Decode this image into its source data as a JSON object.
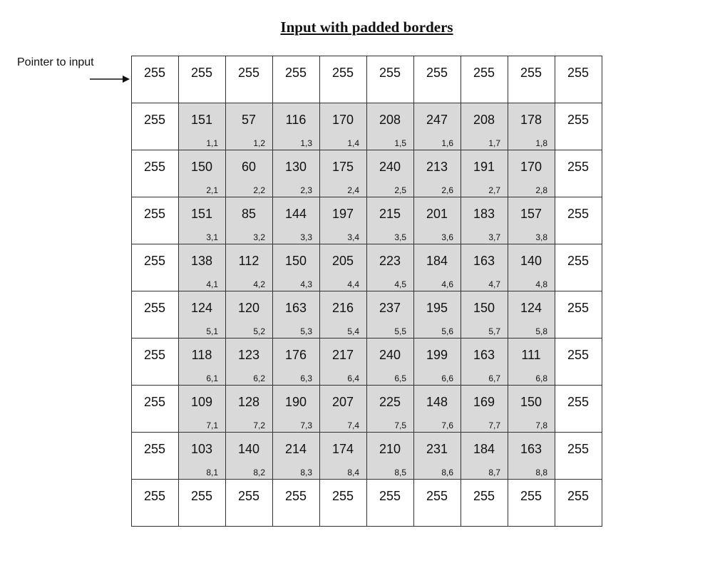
{
  "title": "Input with padded borders",
  "pointer_label": "Pointer to input",
  "grid": {
    "padding_value": "255",
    "colors": {
      "inner_fill": "#d9d9d9",
      "outer_fill": "#ffffff",
      "grid_line": "#333333"
    },
    "rows": [
      [
        "255",
        "255",
        "255",
        "255",
        "255",
        "255",
        "255",
        "255",
        "255",
        "255"
      ],
      [
        "255",
        "151",
        "57",
        "116",
        "170",
        "208",
        "247",
        "208",
        "178",
        "255"
      ],
      [
        "255",
        "150",
        "60",
        "130",
        "175",
        "240",
        "213",
        "191",
        "170",
        "255"
      ],
      [
        "255",
        "151",
        "85",
        "144",
        "197",
        "215",
        "201",
        "183",
        "157",
        "255"
      ],
      [
        "255",
        "138",
        "112",
        "150",
        "205",
        "223",
        "184",
        "163",
        "140",
        "255"
      ],
      [
        "255",
        "124",
        "120",
        "163",
        "216",
        "237",
        "195",
        "150",
        "124",
        "255"
      ],
      [
        "255",
        "118",
        "123",
        "176",
        "217",
        "240",
        "199",
        "163",
        "111",
        "255"
      ],
      [
        "255",
        "109",
        "128",
        "190",
        "207",
        "225",
        "148",
        "169",
        "150",
        "255"
      ],
      [
        "255",
        "103",
        "140",
        "214",
        "174",
        "210",
        "231",
        "184",
        "163",
        "255"
      ],
      [
        "255",
        "255",
        "255",
        "255",
        "255",
        "255",
        "255",
        "255",
        "255",
        "255"
      ]
    ],
    "indices": [
      [
        "1,1",
        "1,2",
        "1,3",
        "1,4",
        "1,5",
        "1,6",
        "1,7",
        "1,8"
      ],
      [
        "2,1",
        "2,2",
        "2,3",
        "2,4",
        "2,5",
        "2,6",
        "2,7",
        "2,8"
      ],
      [
        "3,1",
        "3,2",
        "3,3",
        "3,4",
        "3,5",
        "3,6",
        "3,7",
        "3,8"
      ],
      [
        "4,1",
        "4,2",
        "4,3",
        "4,4",
        "4,5",
        "4,6",
        "4,7",
        "4,8"
      ],
      [
        "5,1",
        "5,2",
        "5,3",
        "5,4",
        "5,5",
        "5,6",
        "5,7",
        "5,8"
      ],
      [
        "6,1",
        "6,2",
        "6,3",
        "6,4",
        "6,5",
        "6,6",
        "6,7",
        "6,8"
      ],
      [
        "7,1",
        "7,2",
        "7,3",
        "7,4",
        "7,5",
        "7,6",
        "7,7",
        "7,8"
      ],
      [
        "8,1",
        "8,2",
        "8,3",
        "8,4",
        "8,5",
        "8,6",
        "8,7",
        "8,8"
      ]
    ]
  }
}
